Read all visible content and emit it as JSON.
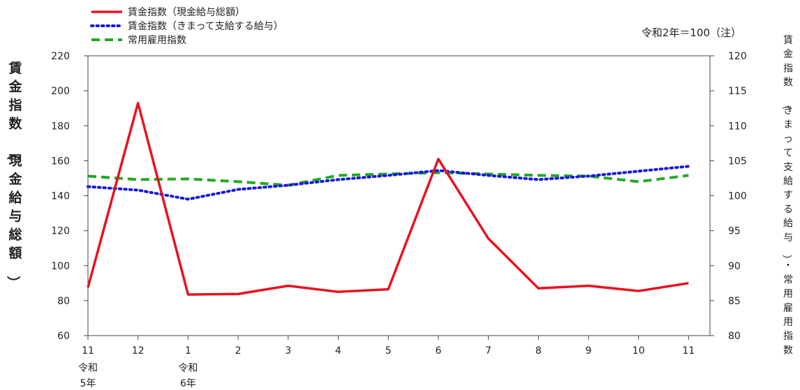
{
  "chart_data": {
    "type": "line",
    "x": [
      "11",
      "12",
      "1",
      "2",
      "3",
      "4",
      "5",
      "6",
      "7",
      "8",
      "9",
      "10",
      "11"
    ],
    "x_year_labels": [
      {
        "index": 0,
        "era": "令和",
        "year": "5年"
      },
      {
        "index": 2,
        "era": "令和",
        "year": "6年"
      }
    ],
    "note": "令和2年＝100（注）",
    "ylabel_left": "賃金指数（現金給与総額）",
    "ylabel_right": "賃金指数（きまって支給する給与）・常用雇用指数",
    "ylim_left": [
      60,
      220
    ],
    "yticks_left": [
      "60",
      "80",
      "100",
      "120",
      "140",
      "160",
      "180",
      "200",
      "220"
    ],
    "ylim_right": [
      80,
      120
    ],
    "yticks_right": [
      "80",
      "85",
      "90",
      "95",
      "100",
      "105",
      "110",
      "115",
      "120"
    ],
    "grid": false,
    "legend": "top-left",
    "series": [
      {
        "name": "賃金指数（現金給与総額）",
        "axis": "left",
        "style": "solid",
        "color": "#e8121f",
        "values": [
          87.5,
          193,
          83.5,
          83.8,
          88.5,
          85,
          86.5,
          161,
          115.5,
          87,
          88.5,
          85.5,
          90
        ]
      },
      {
        "name": "賃金指数（きまって支給する給与）",
        "axis": "right",
        "style": "dotted",
        "color": "#1818e0",
        "values": [
          101.3,
          100.8,
          99.5,
          100.9,
          101.5,
          102.3,
          102.9,
          103.6,
          102.9,
          102.3,
          102.8,
          103.5,
          104.2
        ]
      },
      {
        "name": "常用雇用指数",
        "axis": "right",
        "style": "dashed",
        "color": "#22aa22",
        "values": [
          102.8,
          102.3,
          102.4,
          102.0,
          101.5,
          102.9,
          103.1,
          103.3,
          103.1,
          102.9,
          102.8,
          102.0,
          102.9
        ]
      }
    ]
  }
}
